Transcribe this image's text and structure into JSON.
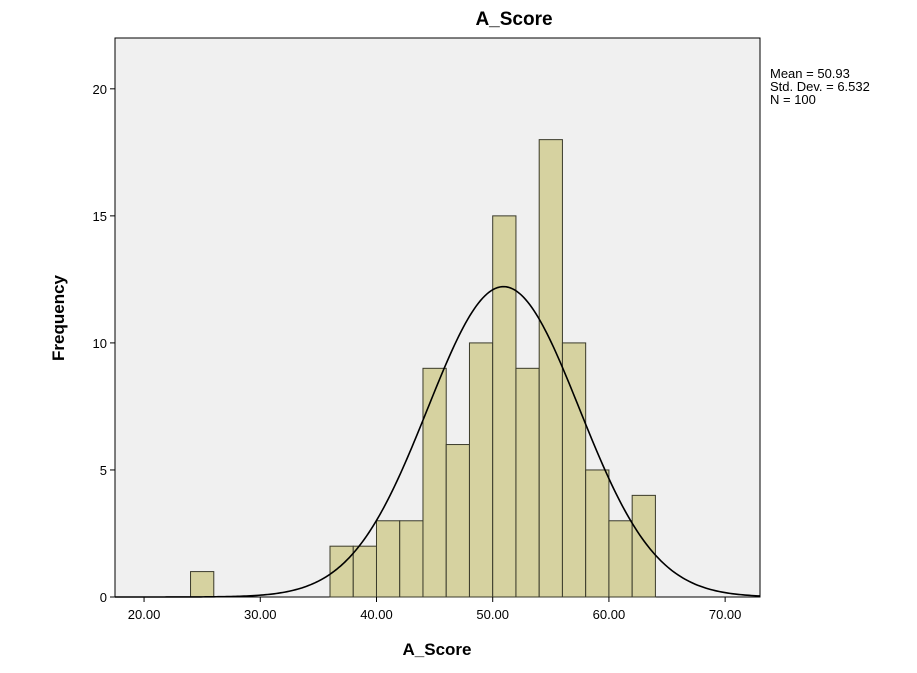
{
  "chart_data": {
    "type": "bar",
    "subtype": "histogram",
    "title": "A_Score",
    "xlabel": "A_Score",
    "ylabel": "Frequency",
    "xlim": [
      17.5,
      73.0
    ],
    "ylim": [
      0,
      22
    ],
    "x_ticks": [
      {
        "value": 20,
        "label": "20.00"
      },
      {
        "value": 30,
        "label": "30.00"
      },
      {
        "value": 40,
        "label": "40.00"
      },
      {
        "value": 50,
        "label": "50.00"
      },
      {
        "value": 60,
        "label": "60.00"
      },
      {
        "value": 70,
        "label": "70.00"
      }
    ],
    "y_ticks": [
      {
        "value": 0,
        "label": "0"
      },
      {
        "value": 5,
        "label": "5"
      },
      {
        "value": 10,
        "label": "10"
      },
      {
        "value": 15,
        "label": "15"
      },
      {
        "value": 20,
        "label": "20"
      }
    ],
    "bin_width": 2,
    "bins": [
      {
        "start": 24,
        "count": 1
      },
      {
        "start": 36,
        "count": 2
      },
      {
        "start": 38,
        "count": 2
      },
      {
        "start": 40,
        "count": 3
      },
      {
        "start": 42,
        "count": 3
      },
      {
        "start": 44,
        "count": 9
      },
      {
        "start": 46,
        "count": 6
      },
      {
        "start": 48,
        "count": 10
      },
      {
        "start": 50,
        "count": 15
      },
      {
        "start": 52,
        "count": 9
      },
      {
        "start": 54,
        "count": 18
      },
      {
        "start": 56,
        "count": 10
      },
      {
        "start": 58,
        "count": 5
      },
      {
        "start": 60,
        "count": 3
      },
      {
        "start": 62,
        "count": 4
      }
    ],
    "normal_curve": {
      "mean": 50.93,
      "sd": 6.532,
      "n": 100
    },
    "stats_lines": [
      "Mean = 50.93",
      "Std. Dev. = 6.532",
      "N = 100"
    ],
    "grid": false,
    "colors": {
      "bar_fill": "#d6d2a0",
      "bar_stroke": "#3a3a2a",
      "plot_bg": "#f0f0f0",
      "curve": "#000000"
    }
  }
}
